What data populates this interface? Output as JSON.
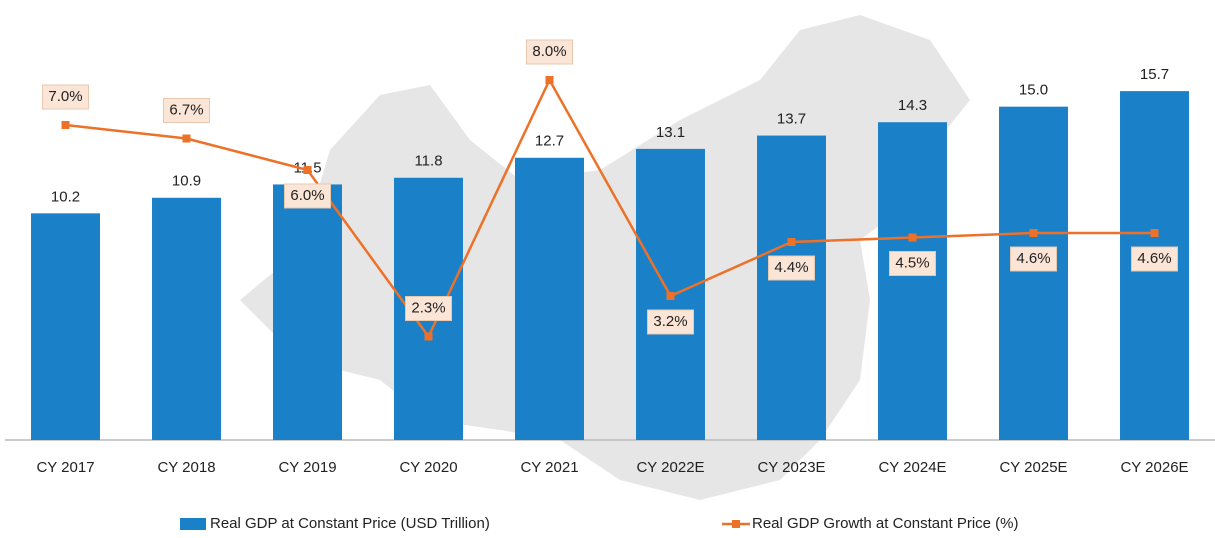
{
  "chart_data": {
    "type": "bar_line",
    "categories": [
      "CY 2017",
      "CY 2018",
      "CY 2019",
      "CY 2020",
      "CY 2021",
      "CY 2022E",
      "CY 2023E",
      "CY 2024E",
      "CY 2025E",
      "CY 2026E"
    ],
    "series": [
      {
        "name": "Real GDP at Constant Price (USD Trillion)",
        "color": "#1a80c8",
        "type": "bar",
        "values": [
          10.2,
          10.9,
          11.5,
          11.8,
          12.7,
          13.1,
          13.7,
          14.3,
          15.0,
          15.7
        ],
        "value_labels": [
          "10.2",
          "10.9",
          "11.5",
          "11.8",
          "12.7",
          "13.1",
          "13.7",
          "14.3",
          "15.0",
          "15.7"
        ]
      },
      {
        "name": "Real GDP Growth at Constant Price (%)",
        "color": "#ed7128",
        "type": "line",
        "axis": "y2",
        "values": [
          7.0,
          6.7,
          6.0,
          2.3,
          8.0,
          3.2,
          4.4,
          4.5,
          4.6,
          4.6
        ],
        "value_labels": [
          "7.0%",
          "6.7%",
          "6.0%",
          "2.3%",
          "8.0%",
          "3.2%",
          "4.4%",
          "4.5%",
          "4.6%",
          "4.6%"
        ]
      }
    ],
    "ylim": [
      0,
      16.2
    ],
    "y2lim": [
      0,
      8
    ]
  }
}
